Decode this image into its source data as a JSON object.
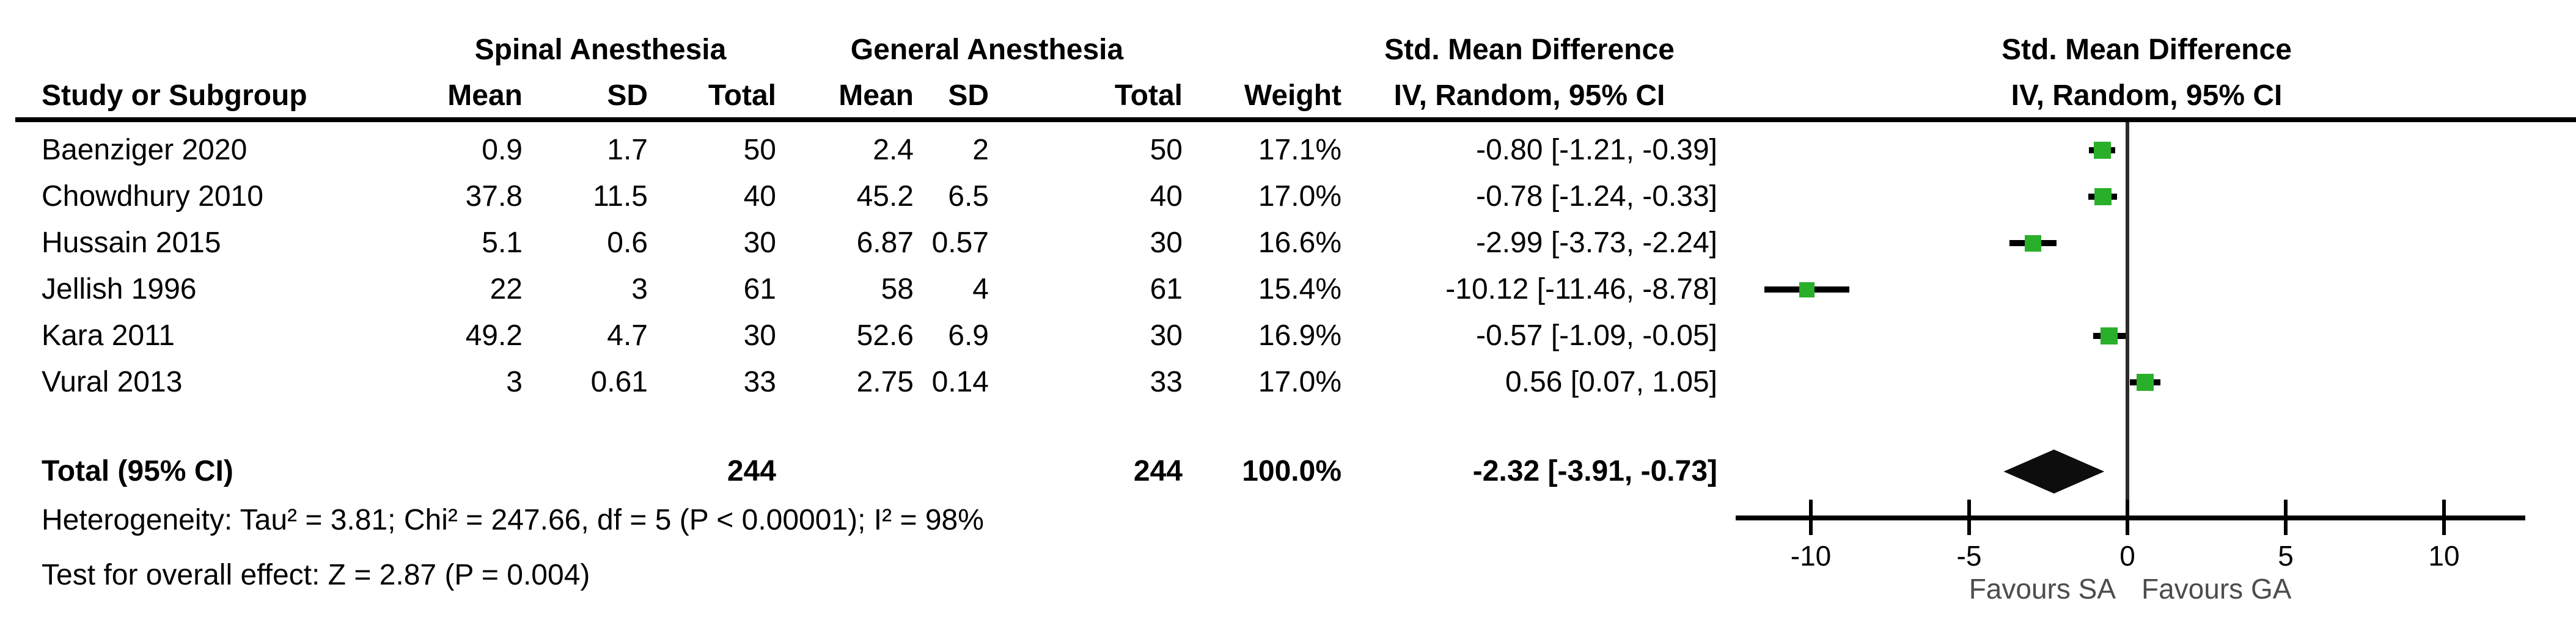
{
  "colors": {
    "marker_green": "#2aaf2a",
    "diamond_black": "#0d0d0d",
    "axis_black": "#000000",
    "favours_gray": "#4c4c4c"
  },
  "table_headers": {
    "study": "Study or Subgroup",
    "sa_group": "Spinal Anesthesia",
    "ga_group": "General Anesthesia",
    "smd_group": "Std. Mean Difference",
    "mean": "Mean",
    "sd": "SD",
    "total": "Total",
    "weight": "Weight",
    "ci_method": "IV, Random, 95% CI",
    "plot_title": "Std. Mean Difference",
    "plot_subtitle": "IV, Random, 95% CI"
  },
  "chart_data": {
    "type": "forest",
    "effect_measure": "Std. Mean Difference",
    "model": "IV, Random, 95% CI",
    "studies": [
      {
        "label": "Baenziger 2020",
        "sa_mean": "0.9",
        "sa_sd": "1.7",
        "sa_total": "50",
        "ga_mean": "2.4",
        "ga_sd": "2",
        "ga_total": "50",
        "weight": "17.1%",
        "smd_text": "-0.80 [-1.21, -0.39]",
        "est": -0.8,
        "lo": -1.21,
        "hi": -0.39,
        "weight_pct": 17.1
      },
      {
        "label": "Chowdhury 2010",
        "sa_mean": "37.8",
        "sa_sd": "11.5",
        "sa_total": "40",
        "ga_mean": "45.2",
        "ga_sd": "6.5",
        "ga_total": "40",
        "weight": "17.0%",
        "smd_text": "-0.78 [-1.24, -0.33]",
        "est": -0.78,
        "lo": -1.24,
        "hi": -0.33,
        "weight_pct": 17.0
      },
      {
        "label": "Hussain 2015",
        "sa_mean": "5.1",
        "sa_sd": "0.6",
        "sa_total": "30",
        "ga_mean": "6.87",
        "ga_sd": "0.57",
        "ga_total": "30",
        "weight": "16.6%",
        "smd_text": "-2.99 [-3.73, -2.24]",
        "est": -2.99,
        "lo": -3.73,
        "hi": -2.24,
        "weight_pct": 16.6
      },
      {
        "label": "Jellish 1996",
        "sa_mean": "22",
        "sa_sd": "3",
        "sa_total": "61",
        "ga_mean": "58",
        "ga_sd": "4",
        "ga_total": "61",
        "weight": "15.4%",
        "smd_text": "-10.12 [-11.46, -8.78]",
        "est": -10.12,
        "lo": -11.46,
        "hi": -8.78,
        "weight_pct": 15.4
      },
      {
        "label": "Kara 2011",
        "sa_mean": "49.2",
        "sa_sd": "4.7",
        "sa_total": "30",
        "ga_mean": "52.6",
        "ga_sd": "6.9",
        "ga_total": "30",
        "weight": "16.9%",
        "smd_text": "-0.57 [-1.09, -0.05]",
        "est": -0.57,
        "lo": -1.09,
        "hi": -0.05,
        "weight_pct": 16.9
      },
      {
        "label": "Vural 2013",
        "sa_mean": "3",
        "sa_sd": "0.61",
        "sa_total": "33",
        "ga_mean": "2.75",
        "ga_sd": "0.14",
        "ga_total": "33",
        "weight": "17.0%",
        "smd_text": "0.56 [0.07, 1.05]",
        "est": 0.56,
        "lo": 0.07,
        "hi": 1.05,
        "weight_pct": 17.0
      }
    ],
    "total": {
      "label": "Total (95% CI)",
      "sa_total": "244",
      "ga_total": "244",
      "weight": "100.0%",
      "smd_text": "-2.32 [-3.91, -0.73]",
      "est": -2.32,
      "lo": -3.91,
      "hi": -0.73
    },
    "heterogeneity": "Heterogeneity: Tau² = 3.81; Chi² = 247.66, df = 5 (P < 0.00001); I² = 98%",
    "overall_effect": "Test for overall effect: Z = 2.87 (P = 0.004)",
    "axis": {
      "ticks": [
        -10,
        -5,
        0,
        5,
        10
      ],
      "tick_labels": [
        "-10",
        "-5",
        "0",
        "5",
        "10"
      ],
      "xmin": -12.4,
      "xmax": 12.6
    },
    "favours_left": "Favours SA",
    "favours_right": "Favours GA"
  }
}
